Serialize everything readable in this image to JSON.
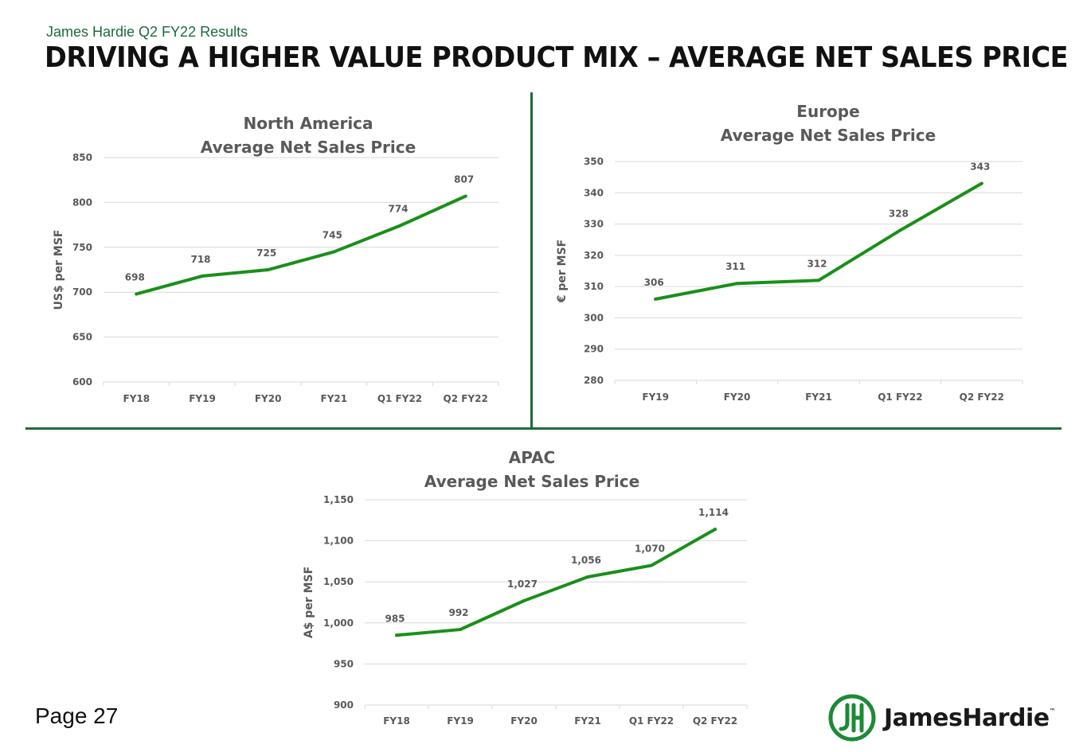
{
  "header": {
    "subtitle": "James Hardie Q2 FY22 Results",
    "title": "DRIVING A HIGHER VALUE PRODUCT MIX – AVERAGE NET SALES PRICE"
  },
  "footer": {
    "page_label": "Page 27",
    "logo_text": "JamesHardie",
    "logo_tm": "™"
  },
  "colors": {
    "line": "#1a8f1a",
    "grid": "#d9d9d9",
    "text": "#595959",
    "brand": "#1d6b3a"
  },
  "chart_data": [
    {
      "id": "na",
      "type": "line",
      "title_line1": "North America",
      "title_line2": "Average Net Sales Price",
      "ylabel": "US$ per MSF",
      "categories": [
        "FY18",
        "FY19",
        "FY20",
        "FY21",
        "Q1 FY22",
        "Q2 FY22"
      ],
      "values": [
        698,
        718,
        725,
        745,
        774,
        807
      ],
      "value_labels": [
        "698",
        "718",
        "725",
        "745",
        "774",
        "807"
      ],
      "ylim": [
        600,
        850
      ],
      "yticks": [
        600,
        650,
        700,
        750,
        800,
        850
      ],
      "ytick_labels": [
        "600",
        "650",
        "700",
        "750",
        "800",
        "850"
      ]
    },
    {
      "id": "eu",
      "type": "line",
      "title_line1": "Europe",
      "title_line2": "Average Net Sales Price",
      "ylabel": "€ per MSF",
      "categories": [
        "FY19",
        "FY20",
        "FY21",
        "Q1 FY22",
        "Q2 FY22"
      ],
      "values": [
        306,
        311,
        312,
        328,
        343
      ],
      "value_labels": [
        "306",
        "311",
        "312",
        "328",
        "343"
      ],
      "ylim": [
        280,
        350
      ],
      "yticks": [
        280,
        290,
        300,
        310,
        320,
        330,
        340,
        350
      ],
      "ytick_labels": [
        "280",
        "290",
        "300",
        "310",
        "320",
        "330",
        "340",
        "350"
      ]
    },
    {
      "id": "apac",
      "type": "line",
      "title_line1": "APAC",
      "title_line2": "Average Net Sales Price",
      "ylabel": "A$ per MSF",
      "categories": [
        "FY18",
        "FY19",
        "FY20",
        "FY21",
        "Q1 FY22",
        "Q2 FY22"
      ],
      "values": [
        985,
        992,
        1027,
        1056,
        1070,
        1114
      ],
      "value_labels": [
        "985",
        "992",
        "1,027",
        "1,056",
        "1,070",
        "1,114"
      ],
      "ylim": [
        900,
        1150
      ],
      "yticks": [
        900,
        950,
        1000,
        1050,
        1100,
        1150
      ],
      "ytick_labels": [
        "900",
        "950",
        "1,000",
        "1,050",
        "1,100",
        "1,150"
      ]
    }
  ]
}
